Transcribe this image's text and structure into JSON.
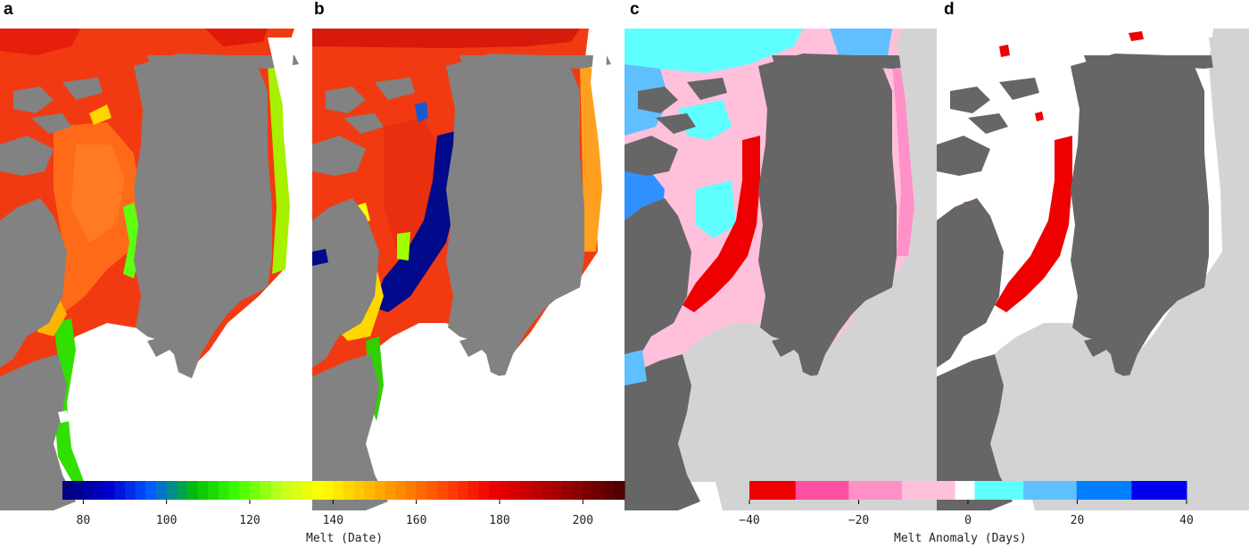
{
  "panels": [
    {
      "letter": "a",
      "content": "melt-date"
    },
    {
      "letter": "b",
      "content": "melt-date"
    },
    {
      "letter": "c",
      "content": "melt-anomaly"
    },
    {
      "letter": "d",
      "content": "anomaly-significance"
    }
  ],
  "colors": {
    "land": "#828282",
    "land_dark": "#666666",
    "ocean_white": "#ffffff",
    "ocean_gray": "#d3d3d3",
    "anomaly_red": "#ee0000"
  },
  "colorbar_date": {
    "label": "Melt (Date)",
    "min": 75,
    "max": 210,
    "ticks": [
      "80",
      "100",
      "120",
      "140",
      "160",
      "180",
      "200"
    ],
    "tick_values": [
      80,
      100,
      120,
      140,
      160,
      180,
      200
    ],
    "stops": [
      "#000080",
      "#0000d0",
      "#0060ff",
      "#00c000",
      "#40ff00",
      "#c0ff20",
      "#ffff00",
      "#ffc000",
      "#ff8000",
      "#ff4000",
      "#ee0000",
      "#c00000",
      "#8b0000",
      "#500000"
    ]
  },
  "colorbar_anomaly": {
    "label": "Melt Anomaly (Days)",
    "min": -40,
    "max": 40,
    "ticks": [
      "−40",
      "−20",
      "0",
      "20",
      "40"
    ],
    "tick_values": [
      -40,
      -20,
      0,
      20,
      40
    ],
    "colors": [
      "#ee0000",
      "#ff4fa0",
      "#ff90c8",
      "#ffc0dc",
      "#ffffff",
      "#60ffff",
      "#60c0ff",
      "#0080ff",
      "#0000ee"
    ]
  }
}
